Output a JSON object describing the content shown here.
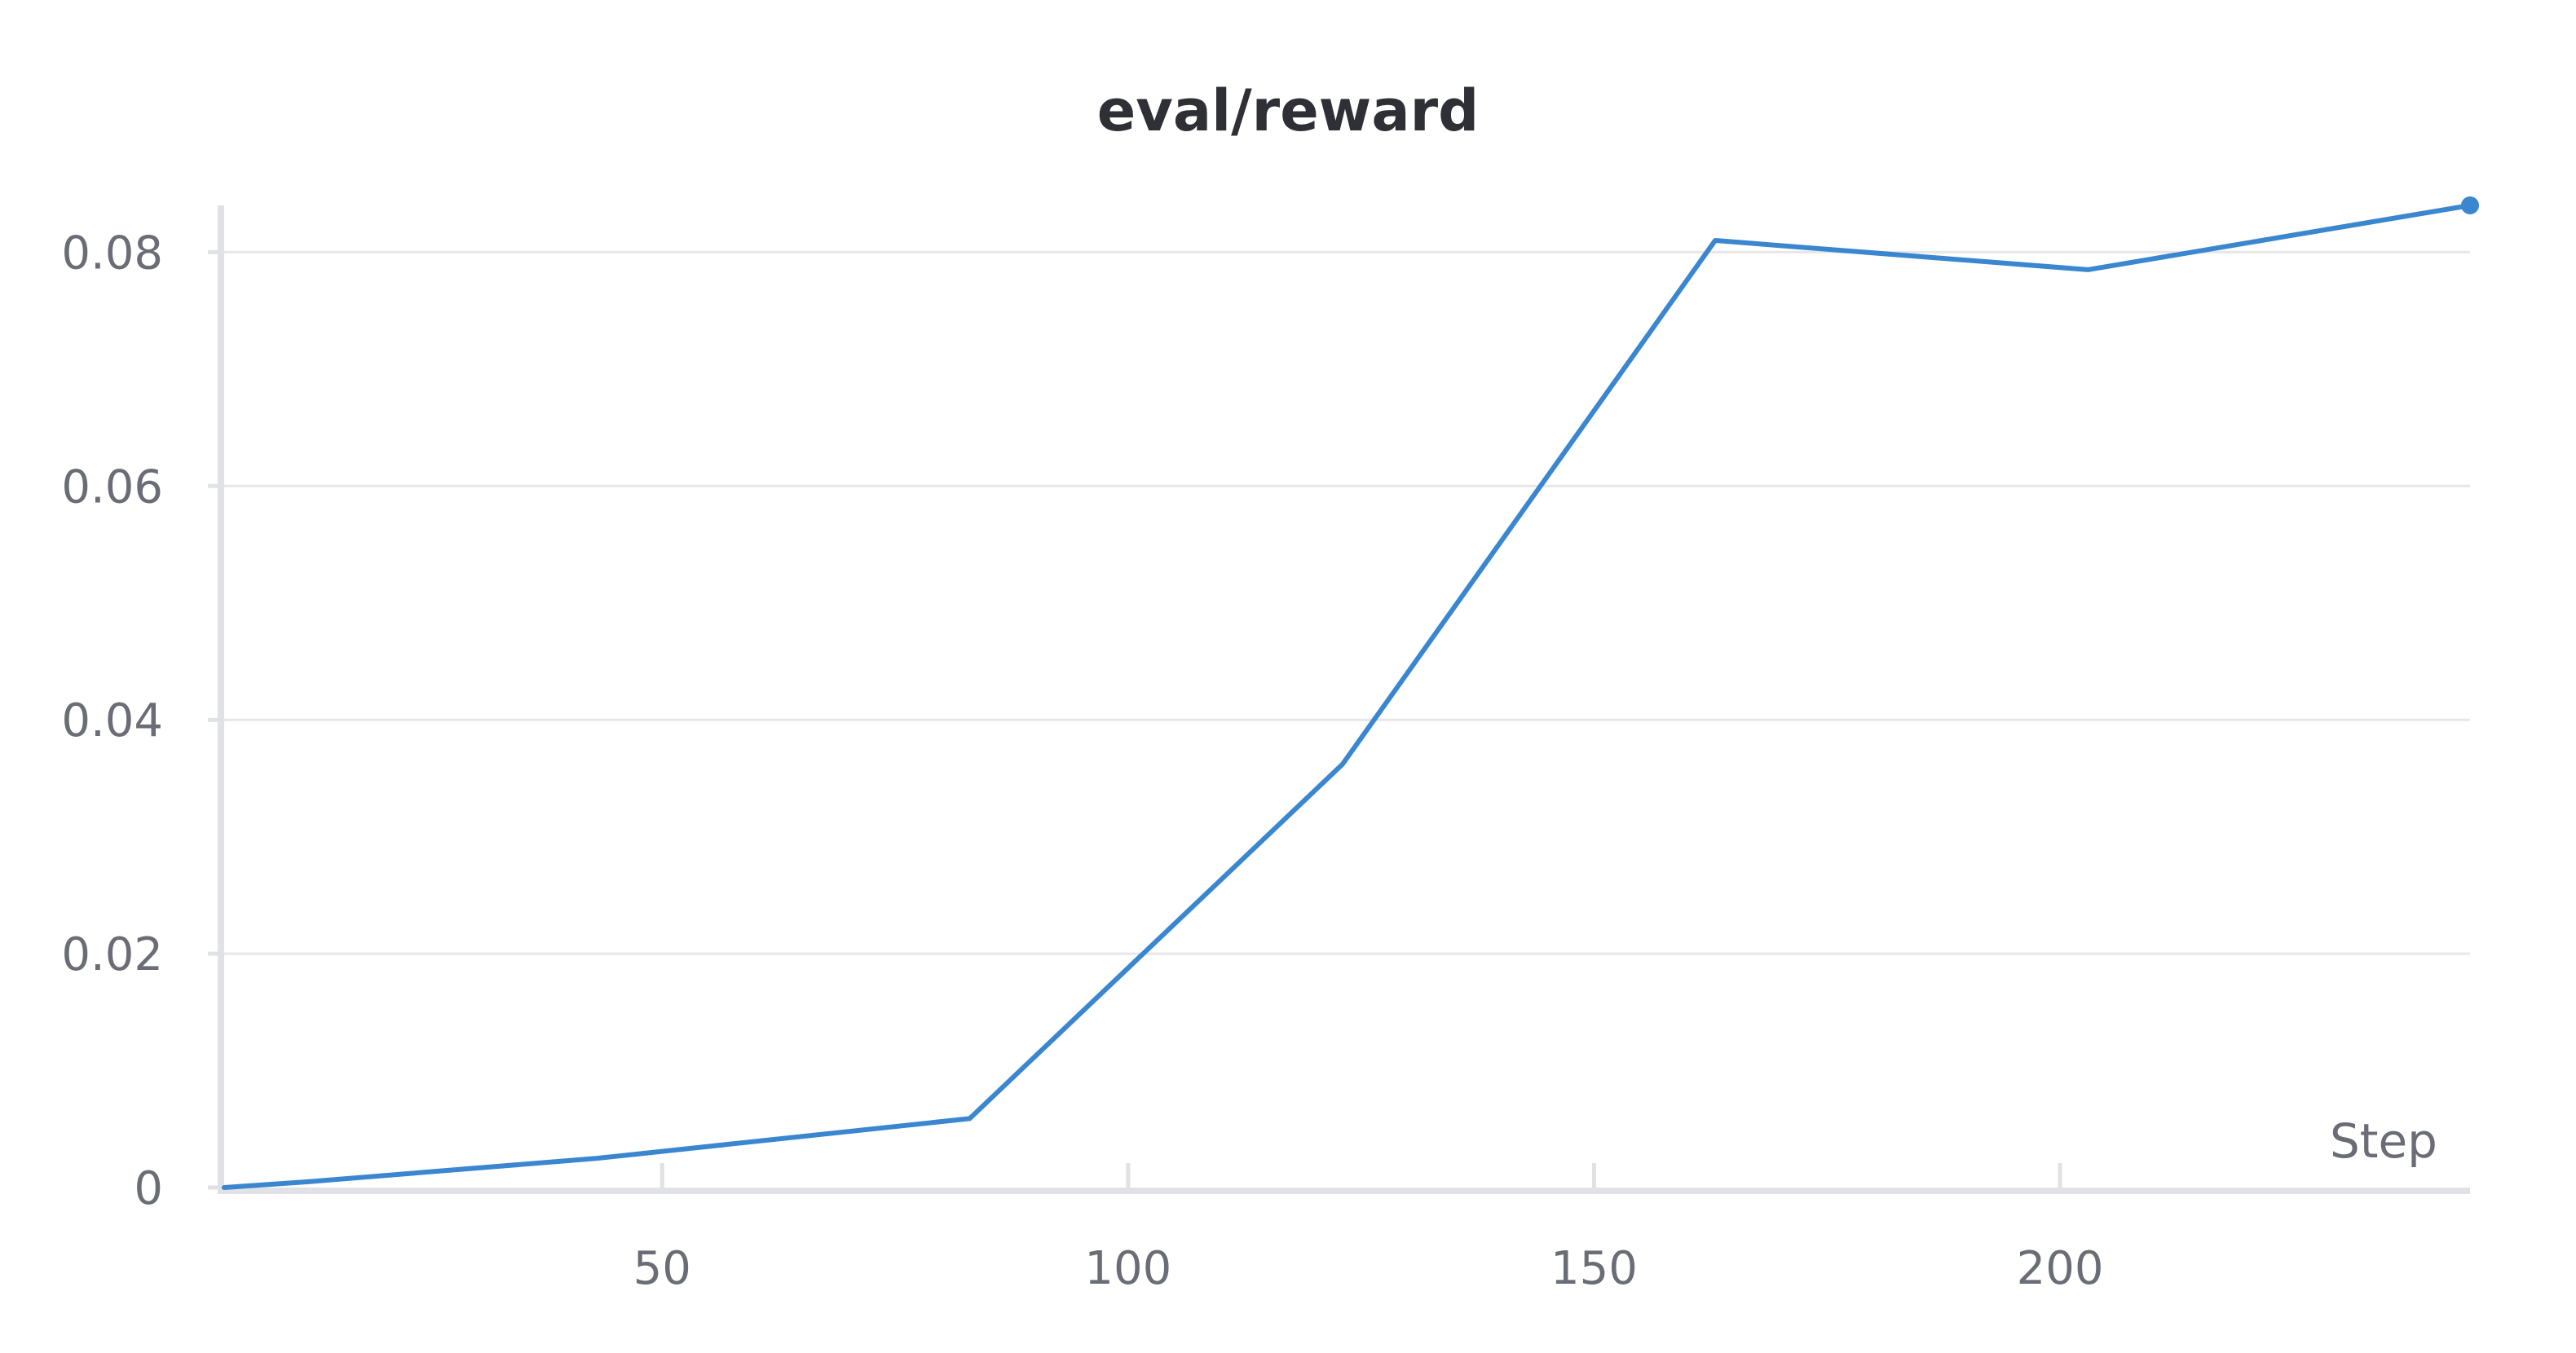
{
  "chart_data": {
    "type": "line",
    "title": "eval/reward",
    "xlabel": "Step",
    "ylabel": "",
    "xlim": [
      3,
      244
    ],
    "ylim": [
      0,
      0.084
    ],
    "x_ticks": [
      50,
      100,
      150,
      200
    ],
    "y_ticks": [
      0,
      0.02,
      0.04,
      0.06,
      0.08
    ],
    "y_tick_labels": [
      "0",
      "0.02",
      "0.04",
      "0.06",
      "0.08"
    ],
    "grid": true,
    "legend": "none",
    "series": [
      {
        "color": "#3a87d0",
        "x": [
          3,
          12,
          43,
          83,
          123,
          163,
          203,
          244
        ],
        "y": [
          0,
          0.0005,
          0.0025,
          0.0059,
          0.0362,
          0.081,
          0.0785,
          0.084
        ]
      }
    ]
  }
}
